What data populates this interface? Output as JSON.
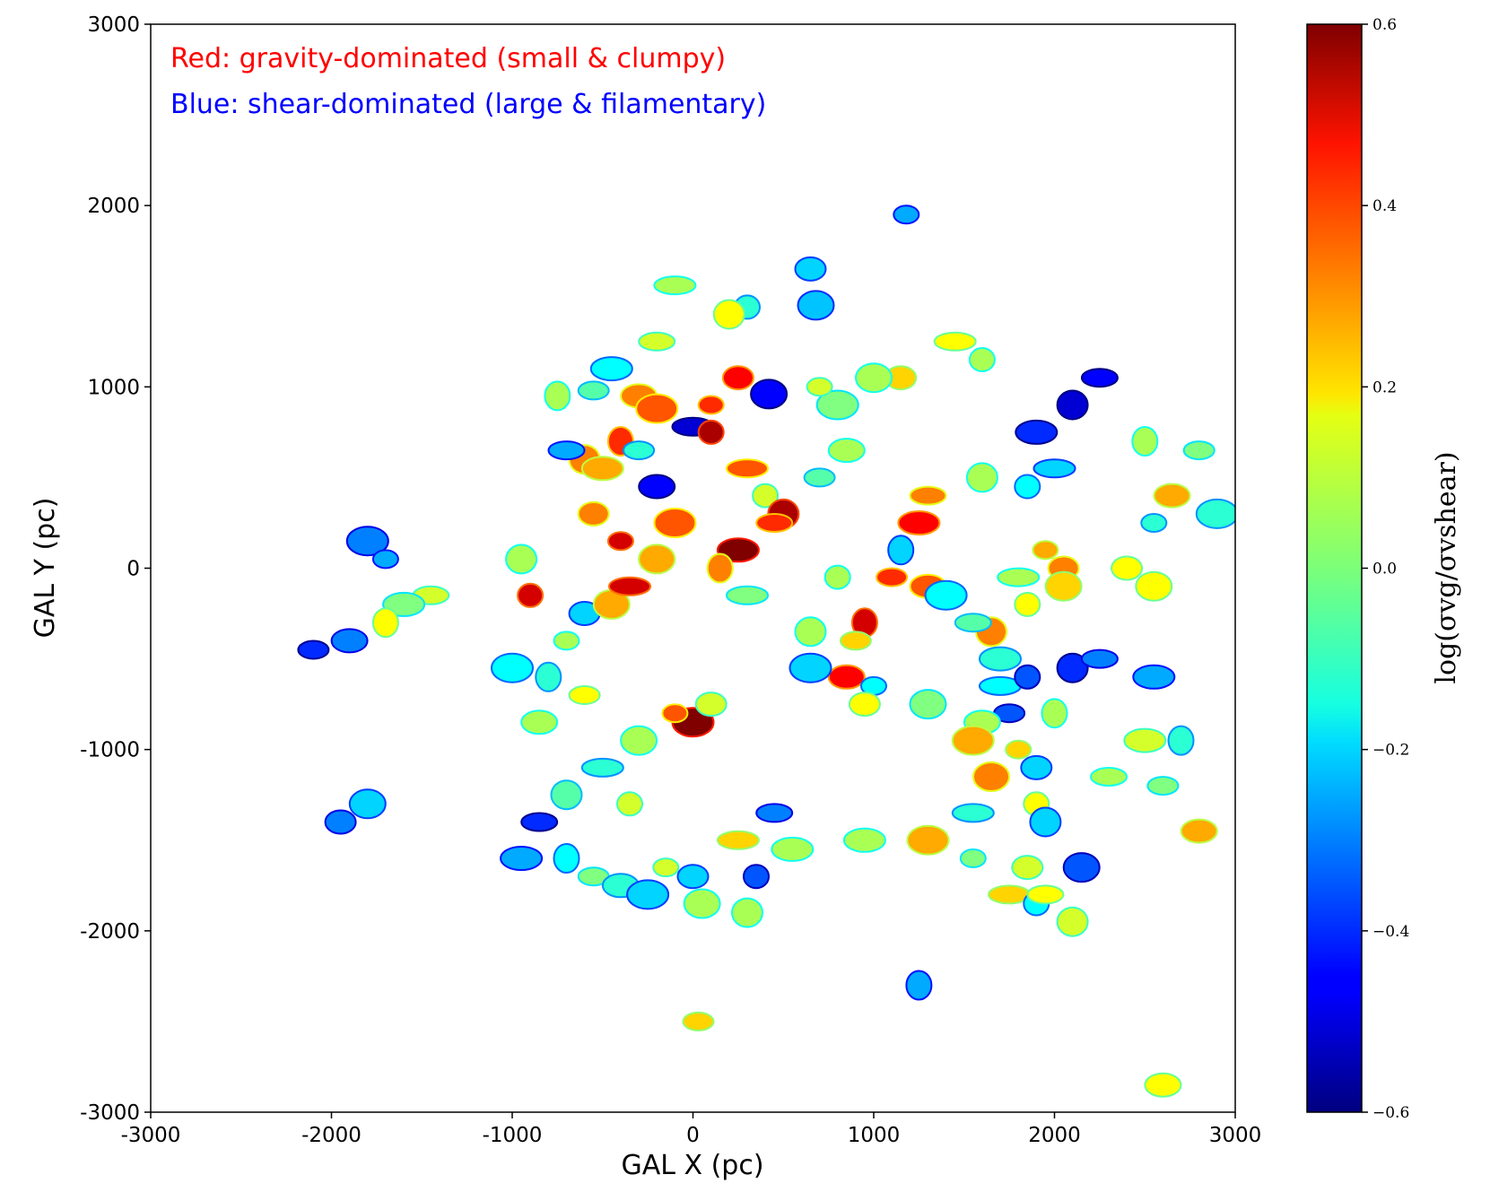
{
  "chart_data": {
    "type": "scatter",
    "xlabel": "GAL X (pc)",
    "ylabel": "GAL Y (pc)",
    "xlim": [
      -3000,
      3000
    ],
    "ylim": [
      -3000,
      3000
    ],
    "xticks": [
      "-3000",
      "-2000",
      "-1000",
      "0",
      "1000",
      "2000",
      "3000"
    ],
    "yticks": [
      "3000",
      "2000",
      "1000",
      "0",
      "-1000",
      "-2000",
      "-3000"
    ],
    "grid": false,
    "annotations": [
      {
        "text": "Red: gravity-dominated (small & clumpy)",
        "color": "#ff0000"
      },
      {
        "text": "Blue: shear-dominated (large & filamentary)",
        "color": "#0000ff"
      }
    ],
    "colorbar": {
      "label": "log(σvg/σvshear)",
      "range": [
        -0.6,
        0.6
      ],
      "ticks": [
        "0.6",
        "0.4",
        "0.2",
        "0.0",
        "−0.2",
        "−0.4",
        "−0.6"
      ],
      "colormap": "jet"
    },
    "points": [
      {
        "x": 1180,
        "y": 1950,
        "v": -0.25
      },
      {
        "x": 650,
        "y": 1650,
        "v": -0.2
      },
      {
        "x": 680,
        "y": 1450,
        "v": -0.22
      },
      {
        "x": -100,
        "y": 1560,
        "v": 0.05
      },
      {
        "x": 300,
        "y": 1440,
        "v": -0.1
      },
      {
        "x": 200,
        "y": 1400,
        "v": 0.15
      },
      {
        "x": -200,
        "y": 1250,
        "v": 0.1
      },
      {
        "x": -450,
        "y": 1100,
        "v": -0.15
      },
      {
        "x": -750,
        "y": 950,
        "v": 0.05
      },
      {
        "x": -550,
        "y": 980,
        "v": -0.05
      },
      {
        "x": -300,
        "y": 950,
        "v": 0.3
      },
      {
        "x": -200,
        "y": 880,
        "v": 0.35
      },
      {
        "x": 100,
        "y": 900,
        "v": 0.4
      },
      {
        "x": 250,
        "y": 1050,
        "v": 0.45
      },
      {
        "x": 420,
        "y": 960,
        "v": -0.45
      },
      {
        "x": 0,
        "y": 780,
        "v": -0.5
      },
      {
        "x": 100,
        "y": 750,
        "v": 0.55
      },
      {
        "x": -600,
        "y": 600,
        "v": 0.3
      },
      {
        "x": -700,
        "y": 650,
        "v": -0.25
      },
      {
        "x": -500,
        "y": 550,
        "v": 0.25
      },
      {
        "x": -400,
        "y": 700,
        "v": 0.4
      },
      {
        "x": -300,
        "y": 650,
        "v": -0.1
      },
      {
        "x": -200,
        "y": 450,
        "v": -0.45
      },
      {
        "x": -100,
        "y": 250,
        "v": 0.35
      },
      {
        "x": -400,
        "y": 150,
        "v": 0.5
      },
      {
        "x": -550,
        "y": 300,
        "v": 0.3
      },
      {
        "x": -200,
        "y": 50,
        "v": 0.25
      },
      {
        "x": 300,
        "y": 550,
        "v": 0.35
      },
      {
        "x": 400,
        "y": 400,
        "v": 0.1
      },
      {
        "x": 500,
        "y": 300,
        "v": 0.55
      },
      {
        "x": 450,
        "y": 250,
        "v": 0.4
      },
      {
        "x": 250,
        "y": 100,
        "v": 0.6
      },
      {
        "x": 150,
        "y": 0,
        "v": 0.3
      },
      {
        "x": 700,
        "y": 500,
        "v": -0.05
      },
      {
        "x": 850,
        "y": 650,
        "v": 0.05
      },
      {
        "x": 800,
        "y": 900,
        "v": 0.0
      },
      {
        "x": 700,
        "y": 1000,
        "v": 0.1
      },
      {
        "x": 1150,
        "y": 1050,
        "v": 0.2
      },
      {
        "x": 1000,
        "y": 1050,
        "v": 0.05
      },
      {
        "x": 1450,
        "y": 1250,
        "v": 0.15
      },
      {
        "x": 1600,
        "y": 1150,
        "v": 0.05
      },
      {
        "x": 2100,
        "y": 900,
        "v": -0.5
      },
      {
        "x": 2250,
        "y": 1050,
        "v": -0.45
      },
      {
        "x": 1900,
        "y": 750,
        "v": -0.4
      },
      {
        "x": 2500,
        "y": 700,
        "v": 0.05
      },
      {
        "x": 2800,
        "y": 650,
        "v": 0.0
      },
      {
        "x": 2650,
        "y": 400,
        "v": 0.25
      },
      {
        "x": 2900,
        "y": 300,
        "v": -0.1
      },
      {
        "x": 2550,
        "y": 250,
        "v": -0.1
      },
      {
        "x": 2400,
        "y": 0,
        "v": 0.15
      },
      {
        "x": 2550,
        "y": -100,
        "v": 0.15
      },
      {
        "x": 2000,
        "y": 550,
        "v": -0.2
      },
      {
        "x": 1850,
        "y": 450,
        "v": -0.15
      },
      {
        "x": 1600,
        "y": 500,
        "v": 0.05
      },
      {
        "x": 1300,
        "y": 400,
        "v": 0.3
      },
      {
        "x": 1250,
        "y": 250,
        "v": 0.45
      },
      {
        "x": 1150,
        "y": 100,
        "v": -0.2
      },
      {
        "x": 1100,
        "y": -50,
        "v": 0.4
      },
      {
        "x": 1300,
        "y": -100,
        "v": 0.35
      },
      {
        "x": 1400,
        "y": -150,
        "v": -0.15
      },
      {
        "x": 1950,
        "y": 100,
        "v": 0.25
      },
      {
        "x": 2050,
        "y": 0,
        "v": 0.3
      },
      {
        "x": 2050,
        "y": -100,
        "v": 0.2
      },
      {
        "x": 1800,
        "y": -50,
        "v": 0.05
      },
      {
        "x": 1850,
        "y": -200,
        "v": 0.15
      },
      {
        "x": 1650,
        "y": -350,
        "v": 0.3
      },
      {
        "x": 1550,
        "y": -300,
        "v": -0.05
      },
      {
        "x": 1700,
        "y": -500,
        "v": -0.1
      },
      {
        "x": 950,
        "y": -300,
        "v": 0.5
      },
      {
        "x": 900,
        "y": -400,
        "v": 0.2
      },
      {
        "x": 850,
        "y": -600,
        "v": 0.45
      },
      {
        "x": 650,
        "y": -550,
        "v": -0.2
      },
      {
        "x": 1000,
        "y": -650,
        "v": -0.15
      },
      {
        "x": 950,
        "y": -750,
        "v": 0.15
      },
      {
        "x": 1300,
        "y": -750,
        "v": 0.0
      },
      {
        "x": 1700,
        "y": -650,
        "v": -0.15
      },
      {
        "x": 1850,
        "y": -600,
        "v": -0.35
      },
      {
        "x": 2100,
        "y": -550,
        "v": -0.4
      },
      {
        "x": 2250,
        "y": -500,
        "v": -0.3
      },
      {
        "x": 2550,
        "y": -600,
        "v": -0.25
      },
      {
        "x": 2000,
        "y": -800,
        "v": 0.05
      },
      {
        "x": 1750,
        "y": -800,
        "v": -0.35
      },
      {
        "x": 1600,
        "y": -850,
        "v": 0.05
      },
      {
        "x": 1550,
        "y": -950,
        "v": 0.25
      },
      {
        "x": 1800,
        "y": -1000,
        "v": 0.2
      },
      {
        "x": 1900,
        "y": -1100,
        "v": -0.2
      },
      {
        "x": 1650,
        "y": -1150,
        "v": 0.3
      },
      {
        "x": 1550,
        "y": -1350,
        "v": -0.1
      },
      {
        "x": 1900,
        "y": -1300,
        "v": 0.15
      },
      {
        "x": 1950,
        "y": -1400,
        "v": -0.2
      },
      {
        "x": 2300,
        "y": -1150,
        "v": 0.05
      },
      {
        "x": 2500,
        "y": -950,
        "v": 0.1
      },
      {
        "x": 2700,
        "y": -950,
        "v": -0.1
      },
      {
        "x": 2600,
        "y": -1200,
        "v": 0.0
      },
      {
        "x": 2800,
        "y": -1450,
        "v": 0.25
      },
      {
        "x": 1300,
        "y": -1500,
        "v": 0.25
      },
      {
        "x": 1550,
        "y": -1600,
        "v": 0.0
      },
      {
        "x": 1850,
        "y": -1650,
        "v": 0.1
      },
      {
        "x": 2150,
        "y": -1650,
        "v": -0.35
      },
      {
        "x": 1750,
        "y": -1800,
        "v": 0.2
      },
      {
        "x": 1900,
        "y": -1850,
        "v": -0.15
      },
      {
        "x": 2100,
        "y": -1950,
        "v": 0.1
      },
      {
        "x": 1950,
        "y": -1800,
        "v": 0.15
      },
      {
        "x": 950,
        "y": -1500,
        "v": 0.05
      },
      {
        "x": 1250,
        "y": -2300,
        "v": -0.25
      },
      {
        "x": 30,
        "y": -2500,
        "v": 0.2
      },
      {
        "x": 2600,
        "y": -2850,
        "v": 0.15
      },
      {
        "x": 0,
        "y": -850,
        "v": 0.6
      },
      {
        "x": -100,
        "y": -800,
        "v": 0.35
      },
      {
        "x": 100,
        "y": -750,
        "v": 0.1
      },
      {
        "x": -300,
        "y": -950,
        "v": 0.05
      },
      {
        "x": -500,
        "y": -1100,
        "v": -0.1
      },
      {
        "x": -350,
        "y": -1300,
        "v": 0.1
      },
      {
        "x": -700,
        "y": -1250,
        "v": -0.05
      },
      {
        "x": -850,
        "y": -1400,
        "v": -0.4
      },
      {
        "x": -950,
        "y": -1600,
        "v": -0.25
      },
      {
        "x": -700,
        "y": -1600,
        "v": -0.15
      },
      {
        "x": -550,
        "y": -1700,
        "v": 0.0
      },
      {
        "x": -400,
        "y": -1750,
        "v": -0.1
      },
      {
        "x": -250,
        "y": -1800,
        "v": -0.2
      },
      {
        "x": -150,
        "y": -1650,
        "v": 0.1
      },
      {
        "x": 0,
        "y": -1700,
        "v": -0.2
      },
      {
        "x": 50,
        "y": -1850,
        "v": 0.05
      },
      {
        "x": 250,
        "y": -1500,
        "v": 0.2
      },
      {
        "x": 350,
        "y": -1700,
        "v": -0.35
      },
      {
        "x": 300,
        "y": -1900,
        "v": 0.05
      },
      {
        "x": 450,
        "y": -1350,
        "v": -0.3
      },
      {
        "x": 550,
        "y": -1550,
        "v": 0.05
      },
      {
        "x": -800,
        "y": -600,
        "v": -0.1
      },
      {
        "x": -600,
        "y": -700,
        "v": 0.15
      },
      {
        "x": -850,
        "y": -850,
        "v": 0.05
      },
      {
        "x": -1000,
        "y": -550,
        "v": -0.15
      },
      {
        "x": -700,
        "y": -400,
        "v": 0.05
      },
      {
        "x": -600,
        "y": -250,
        "v": -0.2
      },
      {
        "x": -450,
        "y": -200,
        "v": 0.25
      },
      {
        "x": -350,
        "y": -100,
        "v": 0.5
      },
      {
        "x": -900,
        "y": -150,
        "v": 0.5
      },
      {
        "x": -950,
        "y": 50,
        "v": 0.05
      },
      {
        "x": -1450,
        "y": -150,
        "v": 0.1
      },
      {
        "x": -1600,
        "y": -200,
        "v": 0.0
      },
      {
        "x": -1700,
        "y": -300,
        "v": 0.15
      },
      {
        "x": -2100,
        "y": -450,
        "v": -0.4
      },
      {
        "x": -1900,
        "y": -400,
        "v": -0.3
      },
      {
        "x": -1800,
        "y": 150,
        "v": -0.3
      },
      {
        "x": -1700,
        "y": 50,
        "v": -0.25
      },
      {
        "x": -1950,
        "y": -1400,
        "v": -0.3
      },
      {
        "x": -1800,
        "y": -1300,
        "v": -0.2
      },
      {
        "x": 300,
        "y": -150,
        "v": 0.0
      },
      {
        "x": 800,
        "y": -50,
        "v": 0.05
      },
      {
        "x": 650,
        "y": -350,
        "v": 0.05
      }
    ]
  }
}
